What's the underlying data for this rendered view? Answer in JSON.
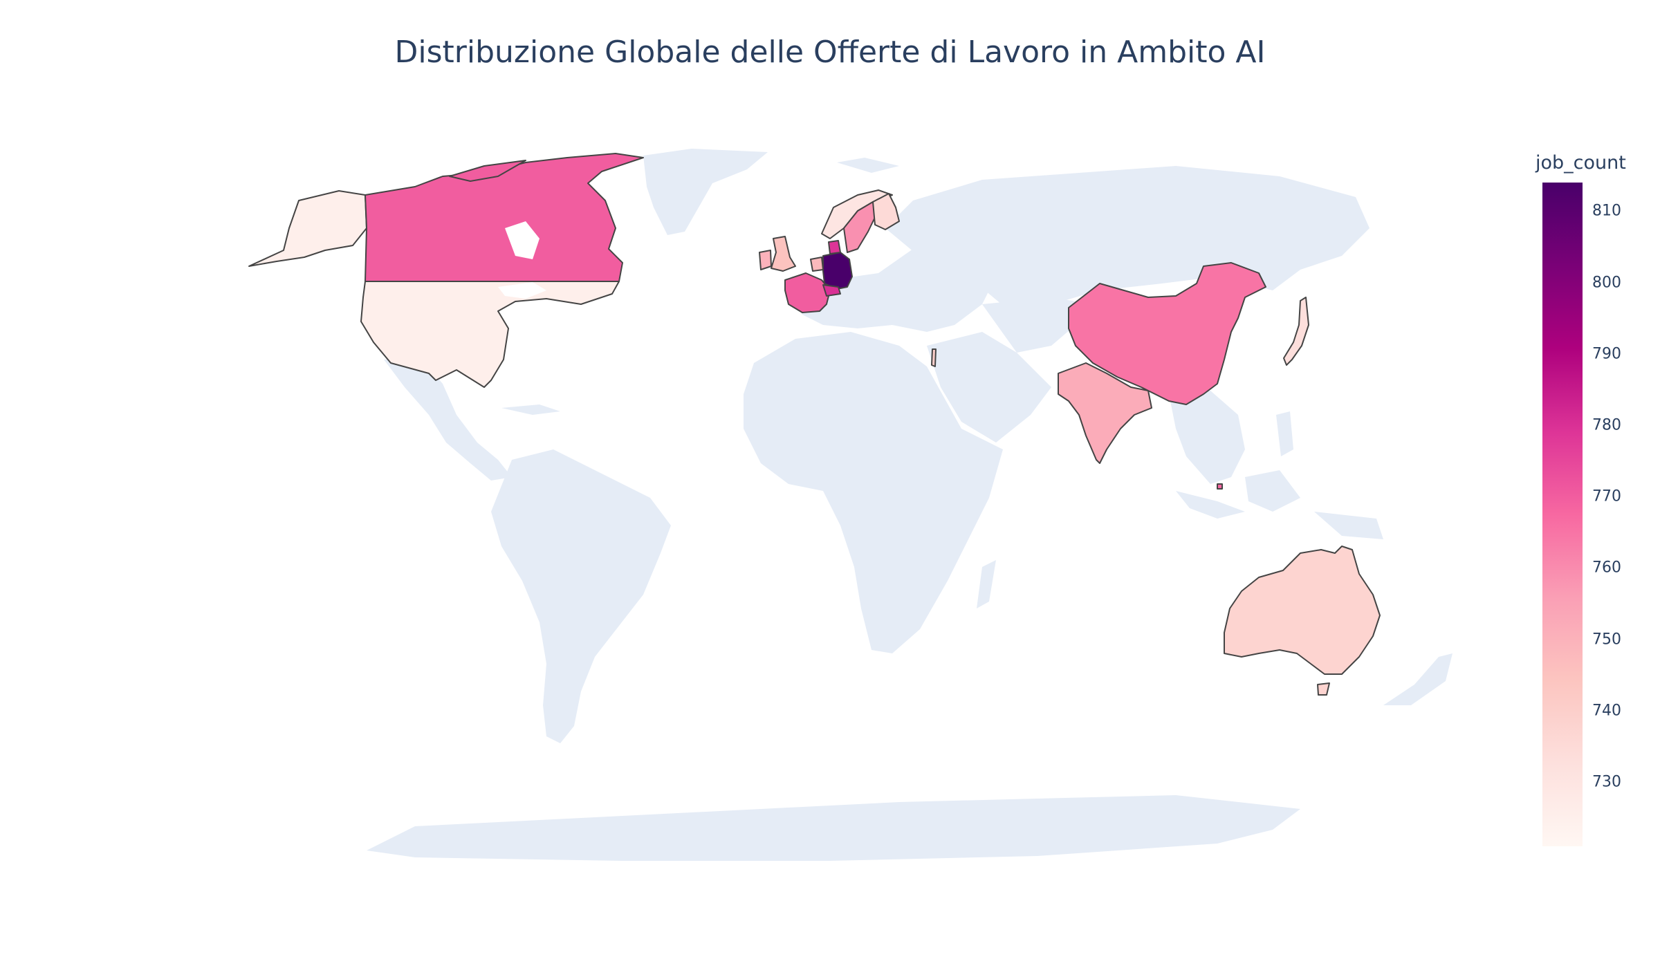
{
  "chart_data": {
    "type": "choropleth",
    "title": "Distribuzione Globale delle Offerte di Lavoro in Ambito AI",
    "colorbar": {
      "title": "job_count",
      "range": [
        721,
        814
      ],
      "ticks": [
        730,
        740,
        750,
        760,
        770,
        780,
        790,
        800,
        810
      ],
      "colorscale": [
        "#fff7f3",
        "#fde0dd",
        "#fcc5c0",
        "#fa9fb5",
        "#f768a1",
        "#dd3497",
        "#ae017e",
        "#7a0177",
        "#49006a"
      ]
    },
    "countries": [
      {
        "name": "Germany",
        "code": "DEU",
        "value": 814
      },
      {
        "name": "Switzerland",
        "code": "CHE",
        "value": 780
      },
      {
        "name": "Denmark",
        "code": "DNK",
        "value": 779
      },
      {
        "name": "Canada",
        "code": "CAN",
        "value": 770
      },
      {
        "name": "France",
        "code": "FRA",
        "value": 770
      },
      {
        "name": "Singapore",
        "code": "SGP",
        "value": 768
      },
      {
        "name": "China",
        "code": "CHN",
        "value": 765
      },
      {
        "name": "Sweden",
        "code": "SWE",
        "value": 759
      },
      {
        "name": "India",
        "code": "IND",
        "value": 752
      },
      {
        "name": "Ireland",
        "code": "IRL",
        "value": 750
      },
      {
        "name": "Netherlands",
        "code": "NLD",
        "value": 748
      },
      {
        "name": "United Kingdom",
        "code": "GBR",
        "value": 745
      },
      {
        "name": "Australia",
        "code": "AUS",
        "value": 738
      },
      {
        "name": "Finland",
        "code": "FIN",
        "value": 735
      },
      {
        "name": "Japan",
        "code": "JPN",
        "value": 733
      },
      {
        "name": "Norway",
        "code": "NOR",
        "value": 730
      },
      {
        "name": "United States",
        "code": "USA",
        "value": 725
      },
      {
        "name": "Israel",
        "code": "ISR",
        "value": 740
      }
    ]
  }
}
